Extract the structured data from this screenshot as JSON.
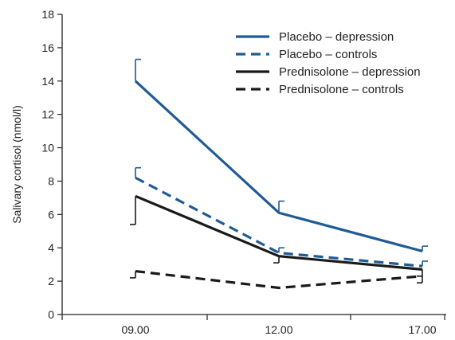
{
  "chart_data": {
    "type": "line",
    "title": "",
    "xlabel": "",
    "ylabel": "Salivary cortisol (nmol/l)",
    "categories": [
      "09.00",
      "12.00",
      "17.00"
    ],
    "ylim": [
      0,
      18
    ],
    "yticks": [
      0,
      2,
      4,
      6,
      8,
      10,
      12,
      14,
      16,
      18
    ],
    "grid": false,
    "legend_position": "top-right",
    "series": [
      {
        "name": "Placebo – depression",
        "values": [
          14.0,
          6.1,
          3.8
        ],
        "error_upper": [
          15.3,
          6.8,
          4.1
        ],
        "error_lower": [
          null,
          null,
          null
        ],
        "color": "#1f5b96",
        "dash": "solid"
      },
      {
        "name": "Placebo – controls",
        "values": [
          8.2,
          3.7,
          2.9
        ],
        "error_upper": [
          8.8,
          4.0,
          3.2
        ],
        "error_lower": [
          null,
          null,
          null
        ],
        "color": "#1f5b96",
        "dash": "dashed"
      },
      {
        "name": "Prednisolone – depression",
        "values": [
          7.1,
          3.5,
          2.7
        ],
        "error_upper": [
          null,
          null,
          null
        ],
        "error_lower": [
          5.4,
          3.1,
          2.3
        ],
        "color": "#1a1a1a",
        "dash": "solid"
      },
      {
        "name": "Prednisolone – controls",
        "values": [
          2.6,
          1.6,
          2.3
        ],
        "error_upper": [
          null,
          null,
          null
        ],
        "error_lower": [
          2.2,
          null,
          1.9
        ],
        "color": "#1a1a1a",
        "dash": "dashed"
      }
    ]
  }
}
